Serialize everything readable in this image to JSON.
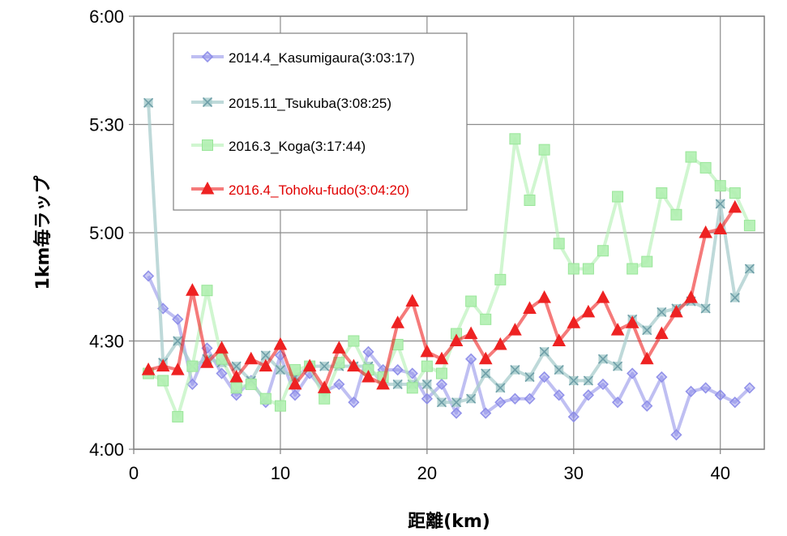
{
  "chart_data": {
    "type": "line",
    "title": "",
    "xlabel": "距離(km)",
    "ylabel": "1km毎ラップ",
    "xlim": [
      0,
      43
    ],
    "ylim_seconds": [
      240,
      360
    ],
    "x_ticks": [
      0,
      10,
      20,
      30,
      40
    ],
    "x_tick_labels": [
      "0",
      "10",
      "20",
      "30",
      "40"
    ],
    "y_ticks_seconds": [
      240,
      270,
      300,
      330,
      360
    ],
    "y_tick_labels": [
      "4:00",
      "4:30",
      "5:00",
      "5:30",
      "6:00"
    ],
    "grid": true,
    "legend_position": "top-left",
    "series": [
      {
        "name": "2014.4_Kasumigaura(3:03:17)",
        "color": "#8a8ae8",
        "marker": "diamond",
        "x": [
          1,
          2,
          3,
          4,
          5,
          6,
          7,
          8,
          9,
          10,
          11,
          12,
          13,
          14,
          15,
          16,
          17,
          18,
          19,
          20,
          21,
          22,
          23,
          24,
          25,
          26,
          27,
          28,
          29,
          30,
          31,
          32,
          33,
          34,
          35,
          36,
          37,
          38,
          39,
          40,
          41,
          42
        ],
        "y": [
          288,
          279,
          276,
          258,
          268,
          261,
          255,
          259,
          253,
          266,
          255,
          261,
          256,
          258,
          253,
          267,
          262,
          262,
          261,
          254,
          258,
          250,
          265,
          250,
          253,
          254,
          254,
          260,
          255,
          249,
          255,
          258,
          253,
          261,
          252,
          260,
          244,
          256,
          257,
          255,
          253,
          257
        ]
      },
      {
        "name": "2015.11_Tsukuba(3:08:25)",
        "color": "#a8cccc",
        "marker": "x-square",
        "x": [
          1,
          2,
          3,
          4,
          5,
          6,
          7,
          8,
          9,
          10,
          11,
          12,
          13,
          14,
          15,
          16,
          17,
          18,
          19,
          20,
          21,
          22,
          23,
          24,
          25,
          26,
          27,
          28,
          29,
          30,
          31,
          32,
          33,
          34,
          35,
          36,
          37,
          38,
          39,
          40,
          41,
          42
        ],
        "y": [
          336,
          264,
          270,
          263,
          265,
          264,
          263,
          259,
          266,
          262,
          260,
          263,
          263,
          263,
          263,
          263,
          258,
          258,
          258,
          258,
          253,
          253,
          254,
          261,
          257,
          262,
          260,
          267,
          262,
          259,
          259,
          265,
          263,
          276,
          273,
          278,
          279,
          281,
          279,
          308,
          282,
          290
        ]
      },
      {
        "name": "2016.3_Koga(3:17:44)",
        "color": "#b0f0b0",
        "marker": "square",
        "x": [
          1,
          2,
          3,
          4,
          5,
          6,
          7,
          8,
          9,
          10,
          11,
          12,
          13,
          14,
          15,
          16,
          17,
          18,
          19,
          20,
          21,
          22,
          23,
          24,
          25,
          26,
          27,
          28,
          29,
          30,
          31,
          32,
          33,
          34,
          35,
          36,
          37,
          38,
          39,
          40,
          41,
          42
        ],
        "y": [
          261,
          259,
          249,
          263,
          284,
          265,
          257,
          258,
          254,
          252,
          262,
          263,
          254,
          264,
          270,
          262,
          260,
          269,
          257,
          263,
          261,
          272,
          281,
          276,
          287,
          326,
          309,
          323,
          297,
          290,
          290,
          295,
          310,
          290,
          292,
          311,
          305,
          321,
          318,
          313,
          311,
          302
        ]
      },
      {
        "name": "2016.4_Tohoku-fudo(3:04:20)",
        "color": "#ee2222",
        "marker": "triangle",
        "x": [
          1,
          2,
          3,
          4,
          5,
          6,
          7,
          8,
          9,
          10,
          11,
          12,
          13,
          14,
          15,
          16,
          17,
          18,
          19,
          20,
          21,
          22,
          23,
          24,
          25,
          26,
          27,
          28,
          29,
          30,
          31,
          32,
          33,
          34,
          35,
          36,
          37,
          38,
          39,
          40,
          41
        ],
        "y": [
          262,
          263,
          262,
          284,
          264,
          268,
          260,
          265,
          263,
          269,
          258,
          263,
          257,
          268,
          263,
          260,
          258,
          275,
          281,
          267,
          265,
          270,
          272,
          265,
          269,
          273,
          279,
          282,
          270,
          275,
          278,
          282,
          273,
          275,
          265,
          272,
          278,
          282,
          300,
          301,
          307
        ]
      }
    ]
  },
  "legend": {
    "entries": [
      {
        "label": "2014.4_Kasumigaura(3:03:17)",
        "text_color": "#000000"
      },
      {
        "label": "2015.11_Tsukuba(3:08:25)",
        "text_color": "#000000"
      },
      {
        "label": "2016.3_Koga(3:17:44)",
        "text_color": "#000000"
      },
      {
        "label": "2016.4_Tohoku-fudo(3:04:20)",
        "text_color": "#e00000"
      }
    ]
  }
}
